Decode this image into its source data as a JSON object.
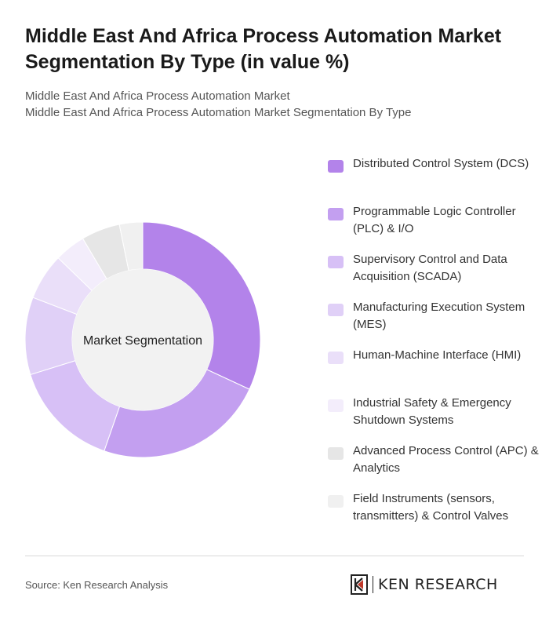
{
  "header": {
    "title": "Middle East And Africa Process Automation Market Segmentation By Type (in value %)",
    "subtitle_line1": "Middle East And Africa Process Automation Market",
    "subtitle_line2": "Middle East And Africa Process Automation Market Segmentation By Type"
  },
  "chart_data": {
    "type": "pie",
    "style": "donut",
    "center_label": "Market Segmentation",
    "legend_position": "right",
    "categories": [
      "Distributed Control System (DCS)",
      "Programmable Logic Controller (PLC) & I/O",
      "Supervisory Control and Data Acquisition (SCADA)",
      "Manufacturing Execution System (MES)",
      "Human-Machine Interface (HMI)",
      "Industrial Safety & Emergency Shutdown Systems",
      "Advanced Process Control (APC) & Analytics",
      "Field Instruments (sensors, transmitters) & Control Valves"
    ],
    "values": [
      30,
      22,
      14,
      10,
      6,
      4,
      5,
      3
    ],
    "colors": [
      "#b383ea",
      "#c39ff0",
      "#d7c0f6",
      "#e0d0f7",
      "#eadff9",
      "#f3edfb",
      "#e6e6e6",
      "#f0f0f0"
    ]
  },
  "footer": {
    "source": "Source: Ken Research Analysis",
    "logo_text": "KEN RESEARCH"
  }
}
